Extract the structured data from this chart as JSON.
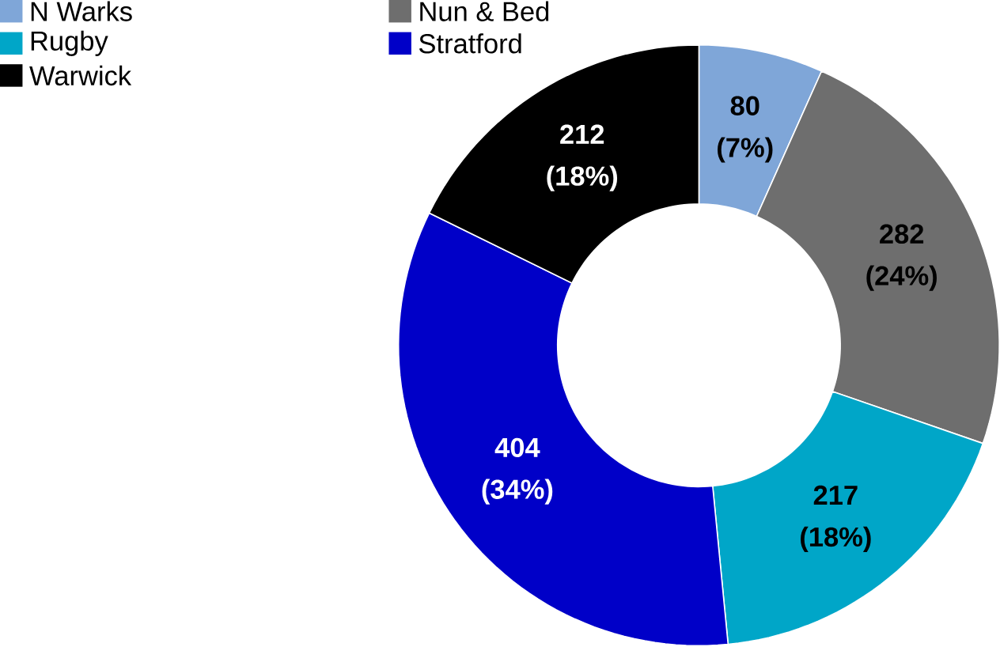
{
  "chart_data": {
    "type": "donut",
    "categories": [
      "N Warks",
      "Nun & Bed",
      "Rugby",
      "Stratford",
      "Warwick"
    ],
    "values": [
      80,
      282,
      217,
      404,
      212
    ],
    "colors": [
      "#7fa6d8",
      "#6e6e6e",
      "#00a6c8",
      "#0000c8",
      "#000000"
    ],
    "value_labels": [
      "80 (7%)",
      "282 (24%)",
      "217 (18%)",
      "404 (34%)",
      "212 (18%)"
    ],
    "legend": "top left"
  }
}
